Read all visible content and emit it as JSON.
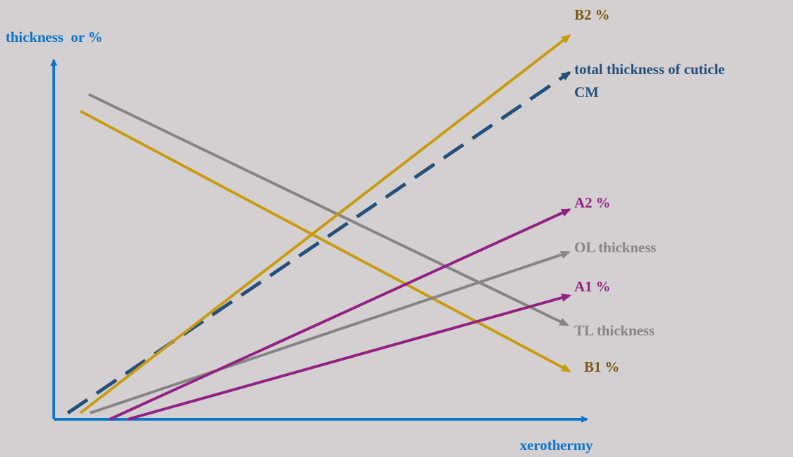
{
  "axes": {
    "y_label": "thickness  or %",
    "x_label": "xerothermy"
  },
  "lines": [
    {
      "id": "b2",
      "label": "B2 %",
      "color": "#c89b0f",
      "style": "solid"
    },
    {
      "id": "cm",
      "label_lines": [
        "total thickness of cuticle",
        "CM"
      ],
      "color": "#23507a",
      "style": "dashed"
    },
    {
      "id": "a2",
      "label": "A2 %",
      "color": "#932182",
      "style": "solid"
    },
    {
      "id": "ol",
      "label": "OL thickness",
      "color": "#858585",
      "style": "solid"
    },
    {
      "id": "a1",
      "label": "A1 %",
      "color": "#932182",
      "style": "solid"
    },
    {
      "id": "tl",
      "label": "TL thickness",
      "color": "#858585",
      "style": "solid"
    },
    {
      "id": "b1",
      "label": "B1 %",
      "color": "#c89b0f",
      "style": "solid"
    }
  ],
  "colors": {
    "axis": "#0a74c8",
    "background": "#d4d0d2",
    "label_gold": "#7a5a10"
  }
}
